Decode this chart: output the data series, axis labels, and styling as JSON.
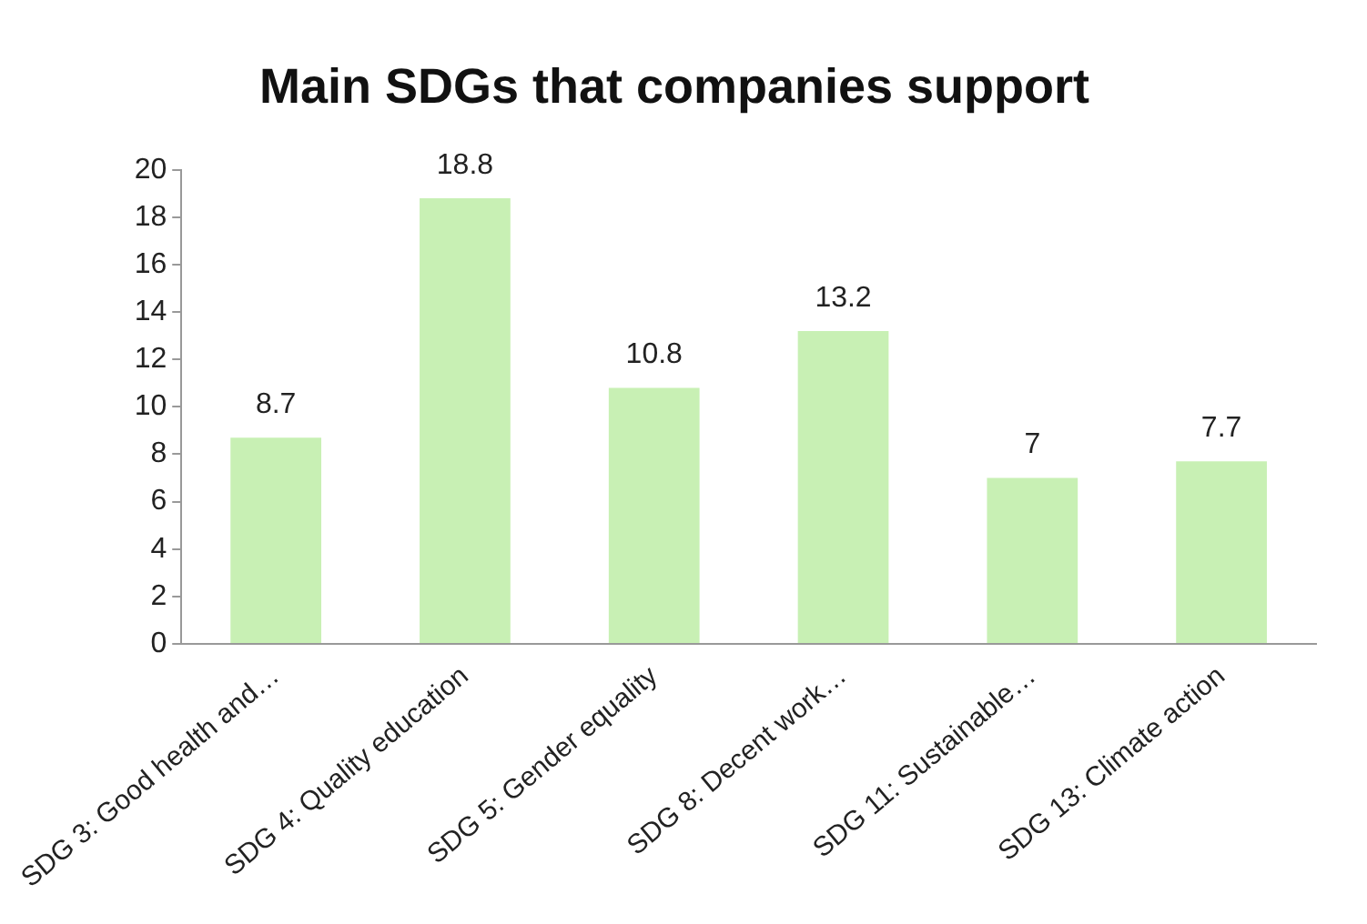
{
  "chart_data": {
    "type": "bar",
    "title": "Main SDGs that companies support",
    "categories": [
      "SDG 3: Good health and…",
      "SDG 4: Quality education",
      "SDG 5: Gender equality",
      "SDG 8: Decent work…",
      "SDG 11: Sustainable…",
      "SDG 13: Climate action"
    ],
    "values": [
      8.7,
      18.8,
      10.8,
      13.2,
      7,
      7.7
    ],
    "color": "#c8f0b4",
    "ylim": [
      0,
      20
    ],
    "yticks": [
      0,
      2,
      4,
      6,
      8,
      10,
      12,
      14,
      16,
      18,
      20
    ],
    "grid": false,
    "data_labels": true
  }
}
